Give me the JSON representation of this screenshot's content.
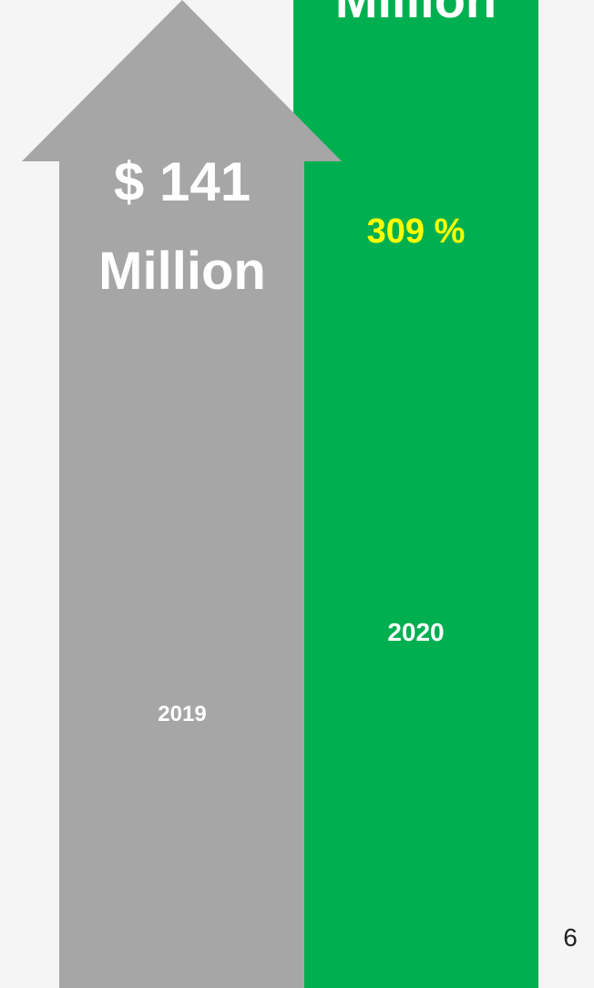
{
  "colors": {
    "background": "#f5f5f5",
    "bar_2019": "#a6a6a6",
    "bar_2020": "#00b050",
    "highlight": "#ffff00",
    "text": "#ffffff"
  },
  "bar_2019": {
    "value": "$ 141",
    "unit": "Million",
    "year": "2019"
  },
  "bar_2020": {
    "unit": "Million",
    "growth": "309 %",
    "year": "2020"
  },
  "page_number": "6"
}
